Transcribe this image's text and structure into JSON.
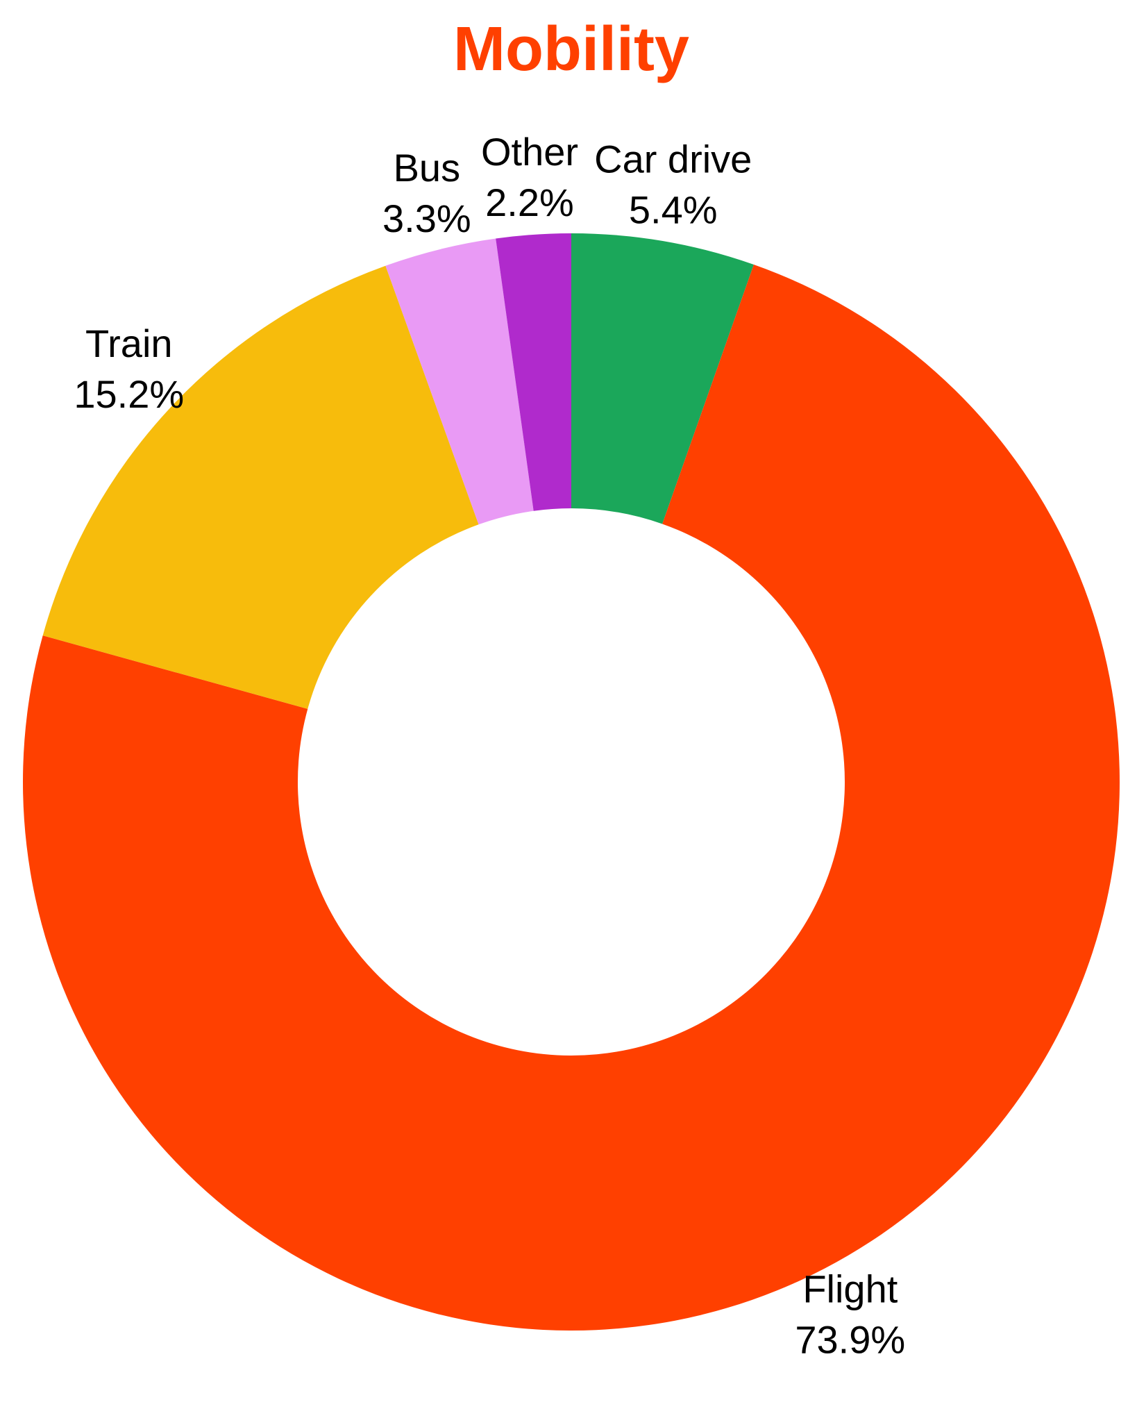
{
  "chart_data": {
    "type": "pie",
    "title": "Mobility",
    "title_color": "#ff4000",
    "categories": [
      "Car drive",
      "Flight",
      "Train",
      "Bus",
      "Other"
    ],
    "values": [
      5.4,
      73.9,
      15.2,
      3.3,
      2.2
    ],
    "value_labels": [
      "5.4%",
      "73.9%",
      "15.2%",
      "3.3%",
      "2.2%"
    ],
    "colors": [
      "#1ba75a",
      "#ff4000",
      "#f7bc0c",
      "#e99af5",
      "#b02acc"
    ],
    "donut": true
  }
}
